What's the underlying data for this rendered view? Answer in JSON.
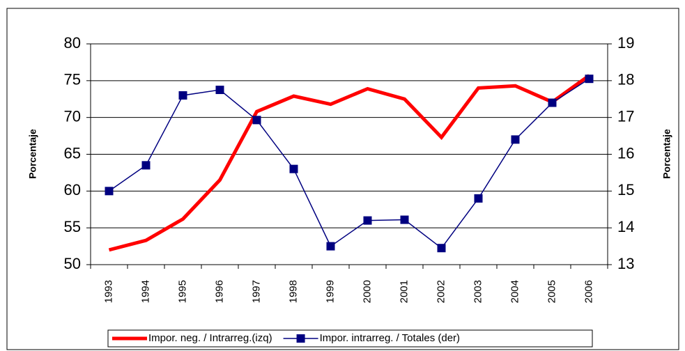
{
  "chart_data": {
    "type": "line",
    "categories": [
      "1993",
      "1994",
      "1995",
      "1996",
      "1997",
      "1998",
      "1999",
      "2000",
      "2001",
      "2002",
      "2003",
      "2004",
      "2005",
      "2006"
    ],
    "series": [
      {
        "name": "Impor. neg. / Intrarreg.(izq)",
        "color": "#ff0000",
        "axis": "y",
        "values": [
          52,
          53.3,
          56.2,
          61.5,
          70.8,
          72.9,
          71.8,
          73.9,
          72.5,
          67.3,
          74.0,
          74.3,
          72.1,
          75.7
        ]
      },
      {
        "name": "Impor. intrarreg. / Totales (der)",
        "color": "#000080",
        "axis": "y2",
        "values": [
          15.0,
          15.7,
          17.6,
          17.75,
          16.93,
          15.6,
          13.5,
          14.2,
          14.22,
          13.45,
          14.8,
          16.4,
          17.4,
          18.05
        ]
      }
    ],
    "ylabel": "Porcentaje",
    "y2label": "Porcentaje",
    "ylim": [
      50,
      80
    ],
    "yticks": [
      50,
      55,
      60,
      65,
      70,
      75,
      80
    ],
    "y2lim": [
      13,
      19
    ],
    "y2ticks": [
      13,
      14,
      15,
      16,
      17,
      18,
      19
    ],
    "grid": true,
    "legend": "bottom"
  }
}
